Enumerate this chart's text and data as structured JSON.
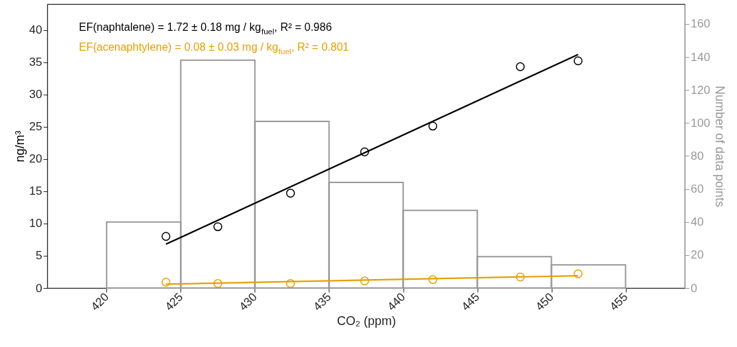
{
  "chart_data": {
    "type": "scatter",
    "xlabel": "CO₂ (ppm)",
    "ylabel": "ng/m³",
    "y2label": "Number of data points",
    "annotations": [
      "EF(naphtalene) = 1.72 ± 0.18 mg / kg$_{fuel}$, R² = 0.986",
      "EF(acenaphtylene) = 0.08 ± 0.03 mg / kg$_{fuel}$, R² = 0.801"
    ],
    "xlim": [
      416,
      459
    ],
    "xticks": [
      420,
      425,
      430,
      435,
      440,
      445,
      450,
      455
    ],
    "ylim": [
      0,
      44
    ],
    "yticks": [
      0,
      5,
      10,
      15,
      20,
      25,
      30,
      35,
      40
    ],
    "y2lim": [
      0,
      172
    ],
    "y2ticks": [
      0,
      20,
      40,
      60,
      80,
      100,
      120,
      140,
      160
    ],
    "grid": false,
    "series": [
      {
        "type": "histogram",
        "axis": "y2",
        "color": "#999999",
        "bins": [
          420,
          425,
          430,
          435,
          440,
          445,
          450,
          455
        ],
        "values": [
          40,
          138,
          101,
          64,
          47,
          19,
          14
        ]
      },
      {
        "marker": "circle",
        "color": "#000000",
        "x": [
          424.0,
          427.5,
          432.4,
          437.4,
          442.0,
          447.9,
          451.8
        ],
        "values": [
          8.0,
          9.5,
          14.7,
          21.1,
          25.1,
          34.3,
          35.2
        ]
      },
      {
        "type": "line",
        "color": "#000000",
        "x": [
          424.0,
          451.8
        ],
        "values": [
          6.8,
          36.2
        ]
      },
      {
        "marker": "circle",
        "color": "#e6a000",
        "x": [
          424.0,
          427.5,
          432.4,
          437.4,
          442.0,
          447.9,
          451.8
        ],
        "values": [
          0.9,
          0.7,
          0.7,
          1.1,
          1.3,
          1.7,
          2.2
        ]
      },
      {
        "type": "line",
        "color": "#e6a000",
        "x": [
          424.0,
          451.8
        ],
        "values": [
          0.6,
          1.9
        ]
      }
    ]
  }
}
